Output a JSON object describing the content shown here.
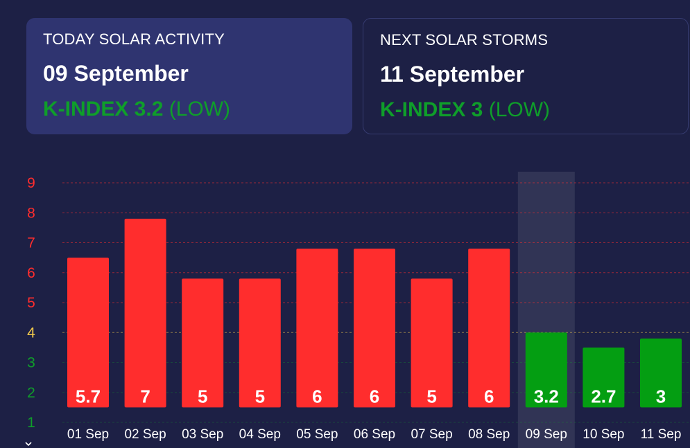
{
  "today_card": {
    "label": "TODAY SOLAR ACTIVITY",
    "date": "09 September",
    "k_label": "K-INDEX 3.2",
    "level": "(LOW)"
  },
  "next_card": {
    "label": "NEXT SOLAR STORMS",
    "date": "11 September",
    "k_label": "K-INDEX 3",
    "level": "(LOW)"
  },
  "colors": {
    "background": "#1d2045",
    "today_card": "#2f3470",
    "high": "#ff2d2d",
    "low": "#049e12",
    "moderate_tick": "#f2c94c",
    "axis_label": "#ffffff"
  },
  "icons": {
    "scroll": "chevron-down-icon"
  },
  "chart_data": {
    "type": "bar",
    "categories": [
      "01 Sep",
      "02 Sep",
      "03 Sep",
      "04 Sep",
      "05 Sep",
      "06 Sep",
      "07 Sep",
      "08 Sep",
      "09 Sep",
      "10 Sep",
      "11 Sep"
    ],
    "values": [
      5.7,
      7,
      5,
      5,
      6,
      6,
      5,
      6,
      3.2,
      2.7,
      3
    ],
    "value_labels": [
      "5.7",
      "7",
      "5",
      "5",
      "6",
      "6",
      "5",
      "6",
      "3.2",
      "2.7",
      "3"
    ],
    "bar_colors": [
      "#ff2d2d",
      "#ff2d2d",
      "#ff2d2d",
      "#ff2d2d",
      "#ff2d2d",
      "#ff2d2d",
      "#ff2d2d",
      "#ff2d2d",
      "#049e12",
      "#049e12",
      "#049e12"
    ],
    "highlight_category": "09 Sep",
    "yticks": [
      1,
      2,
      3,
      4,
      5,
      6,
      7,
      8,
      9
    ],
    "ytick_colors": [
      "#0f9e2a",
      "#0f9e2a",
      "#0f9e2a",
      "#f2c94c",
      "#ff2d2d",
      "#ff2d2d",
      "#ff2d2d",
      "#ff2d2d",
      "#ff2d2d"
    ],
    "ylim": [
      1,
      9
    ],
    "grid": true,
    "title": "",
    "xlabel": "",
    "ylabel": ""
  }
}
